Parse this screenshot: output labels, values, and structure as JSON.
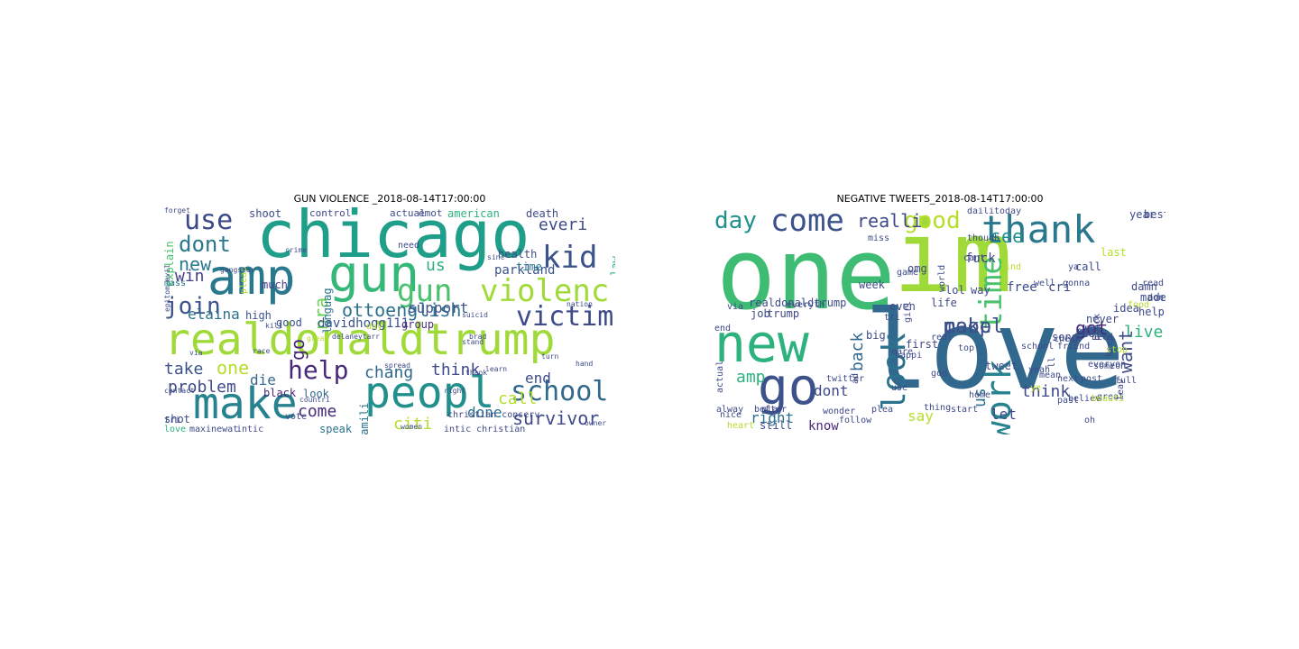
{
  "clouds": [
    {
      "title": "GUN VIOLENCE _2018-08-14T17:00:00",
      "words": [
        {
          "text": "chicago",
          "color": "#1f9e89"
        },
        {
          "text": "realdonaldtrump",
          "color": "#a0da39"
        },
        {
          "text": "amp",
          "color": "#2a788e"
        },
        {
          "text": "peopl",
          "color": "#21908d"
        },
        {
          "text": "make",
          "color": "#26828e"
        },
        {
          "text": "gun",
          "color": "#35b779"
        },
        {
          "text": "gun",
          "color": "#4ac16d"
        },
        {
          "text": "violenc",
          "color": "#a0da39"
        },
        {
          "text": "victim",
          "color": "#3e4a89"
        },
        {
          "text": "school",
          "color": "#31688e"
        },
        {
          "text": "kid",
          "color": "#3b528b"
        },
        {
          "text": "use",
          "color": "#3e4989"
        },
        {
          "text": "dont",
          "color": "#2a788e"
        },
        {
          "text": "join",
          "color": "#3b528b"
        },
        {
          "text": "help",
          "color": "#482878"
        },
        {
          "text": "ottoenglish",
          "color": "#2c728e"
        },
        {
          "text": "survivor",
          "color": "#3e4a89"
        },
        {
          "text": "new",
          "color": "#2a788e"
        },
        {
          "text": "win",
          "color": "#433e85"
        },
        {
          "text": "elaina",
          "color": "#2c728e"
        },
        {
          "text": "support",
          "color": "#3b528b"
        },
        {
          "text": "everi",
          "color": "#3e4a89"
        },
        {
          "text": "us",
          "color": "#2db27d"
        },
        {
          "text": "go",
          "color": "#482677"
        },
        {
          "text": "nra",
          "color": "#6ece58"
        },
        {
          "text": "problem",
          "color": "#3e4a89"
        },
        {
          "text": "take",
          "color": "#3b528b"
        },
        {
          "text": "one",
          "color": "#b5de2b"
        },
        {
          "text": "chang",
          "color": "#31688e"
        },
        {
          "text": "think",
          "color": "#3e4a89"
        },
        {
          "text": "die",
          "color": "#31688e"
        },
        {
          "text": "citi",
          "color": "#b5de2b"
        },
        {
          "text": "come",
          "color": "#472d7b"
        },
        {
          "text": "done",
          "color": "#2c728e"
        },
        {
          "text": "call",
          "color": "#b5de2b"
        },
        {
          "text": "end",
          "color": "#3e4a89"
        },
        {
          "text": "davidhogg111",
          "color": "#3b528b"
        },
        {
          "text": "parkland",
          "color": "#3b528b"
        },
        {
          "text": "time",
          "color": "#2a788e"
        },
        {
          "text": "shoot",
          "color": "#3e4a89"
        },
        {
          "text": "control",
          "color": "#3e4a89"
        },
        {
          "text": "american",
          "color": "#2db27d"
        },
        {
          "text": "death",
          "color": "#3e4a89"
        },
        {
          "text": "emot",
          "color": "#3e4a89"
        },
        {
          "text": "actual",
          "color": "#3e4a89"
        },
        {
          "text": "much",
          "color": "#433e85"
        },
        {
          "text": "need",
          "color": "#3e4a89"
        },
        {
          "text": "high",
          "color": "#3b528b"
        },
        {
          "text": "languag",
          "color": "#2c728e"
        },
        {
          "text": "good",
          "color": "#3b528b"
        },
        {
          "text": "group",
          "color": "#472d7b"
        },
        {
          "text": "black",
          "color": "#482878"
        },
        {
          "text": "look",
          "color": "#31688e"
        },
        {
          "text": "speak",
          "color": "#2c728e"
        },
        {
          "text": "famili",
          "color": "#2c728e"
        },
        {
          "text": "shot",
          "color": "#3e4a89"
        },
        {
          "text": "love",
          "color": "#2db27d"
        },
        {
          "text": "maxinewat",
          "color": "#3e4a89"
        },
        {
          "text": "intic",
          "color": "#3e4a89"
        },
        {
          "text": "explain",
          "color": "#4ac16d"
        },
        {
          "text": "health",
          "color": "#3e4a89"
        },
        {
          "text": "law",
          "color": "#2db27d"
        },
        {
          "text": "tri",
          "color": "#3e4a89"
        },
        {
          "text": "pleas",
          "color": "#b5de2b"
        },
        {
          "text": "vote",
          "color": "#3e4a89"
        },
        {
          "text": "christian conserv",
          "color": "#3e4a89"
        },
        {
          "text": "intic christian",
          "color": "#3e4a89"
        },
        {
          "text": "mass",
          "color": "#2c728e"
        },
        {
          "text": "day",
          "color": "#b5de2b"
        },
        {
          "text": "crime",
          "color": "#3e4a89"
        },
        {
          "text": "great",
          "color": "#b5de2b"
        },
        {
          "text": "kill",
          "color": "#3e4a89"
        },
        {
          "text": "forget",
          "color": "#3e4a89"
        },
        {
          "text": "stand",
          "color": "#3e4a89"
        },
        {
          "text": "right",
          "color": "#3e4a89"
        },
        {
          "text": "better",
          "color": "#3e4a89"
        },
        {
          "text": "sinc",
          "color": "#3e4a89"
        },
        {
          "text": "epitom evil",
          "color": "#3e4a89"
        },
        {
          "text": "women",
          "color": "#3e4a89"
        },
        {
          "text": "suicid",
          "color": "#3e4a89"
        },
        {
          "text": "countri",
          "color": "#3e4a89"
        },
        {
          "text": "nation",
          "color": "#3e4a89"
        },
        {
          "text": "delaneytarr",
          "color": "#3e4a89"
        },
        {
          "text": "bring",
          "color": "#3e4a89"
        },
        {
          "text": "believ",
          "color": "#3e4a89"
        },
        {
          "text": "spread",
          "color": "#3e4a89"
        },
        {
          "text": "brad",
          "color": "#3e4a89"
        },
        {
          "text": "learn",
          "color": "#3e4a89"
        },
        {
          "text": "thank",
          "color": "#3e4a89"
        },
        {
          "text": "gangster",
          "color": "#3e4a89"
        },
        {
          "text": "contact",
          "color": "#3e4a89"
        },
        {
          "text": "hand",
          "color": "#3e4a89"
        },
        {
          "text": "turn",
          "color": "#3e4a89"
        },
        {
          "text": "realiti",
          "color": "#3e4a89"
        },
        {
          "text": "via",
          "color": "#3e4a89"
        },
        {
          "text": "owner",
          "color": "#3e4a89"
        },
        {
          "text": "race",
          "color": "#3e4a89"
        },
        {
          "text": "plan",
          "color": "#3e4a89"
        },
        {
          "text": "state",
          "color": "#3e4a89"
        }
      ]
    },
    {
      "title": "NEGATIVE TWEETS_2018-08-14T17:00:00",
      "words": [
        {
          "text": "one",
          "color": "#3fbc73"
        },
        {
          "text": "im",
          "color": "#a0da39"
        },
        {
          "text": "love",
          "color": "#31688e"
        },
        {
          "text": "new",
          "color": "#2db27d"
        },
        {
          "text": "go",
          "color": "#3b528b"
        },
        {
          "text": "thank",
          "color": "#2a788e"
        },
        {
          "text": "look",
          "color": "#2c728e"
        },
        {
          "text": "work",
          "color": "#26828e"
        },
        {
          "text": "time",
          "color": "#4ac16d"
        },
        {
          "text": "come",
          "color": "#3b528b"
        },
        {
          "text": "day",
          "color": "#21908d"
        },
        {
          "text": "good",
          "color": "#b5de2b"
        },
        {
          "text": "realli",
          "color": "#3e4a89"
        },
        {
          "text": "make",
          "color": "#3e4a89"
        },
        {
          "text": "peopl",
          "color": "#3b528b"
        },
        {
          "text": "see",
          "color": "#21908d"
        },
        {
          "text": "got",
          "color": "#482878"
        },
        {
          "text": "live",
          "color": "#2db27d"
        },
        {
          "text": "want",
          "color": "#3e4a89"
        },
        {
          "text": "back",
          "color": "#31688e"
        },
        {
          "text": "us",
          "color": "#2c728e"
        },
        {
          "text": "think",
          "color": "#3e4a89"
        },
        {
          "text": "let",
          "color": "#3e4a89"
        },
        {
          "text": "say",
          "color": "#b5de2b"
        },
        {
          "text": "amp",
          "color": "#2db27d"
        },
        {
          "text": "right",
          "color": "#2c728e"
        },
        {
          "text": "know",
          "color": "#482878"
        },
        {
          "text": "dont",
          "color": "#3e4a89"
        },
        {
          "text": "tweet",
          "color": "#3e4a89"
        },
        {
          "text": "last",
          "color": "#b5de2b"
        },
        {
          "text": "best",
          "color": "#3e4a89"
        },
        {
          "text": "year",
          "color": "#3e4a89"
        },
        {
          "text": "call",
          "color": "#3e4a89"
        },
        {
          "text": "made",
          "color": "#3e4a89"
        },
        {
          "text": "realdonaldtrump",
          "color": "#3e4a89"
        },
        {
          "text": "trump",
          "color": "#3e4a89"
        },
        {
          "text": "still",
          "color": "#3e4a89"
        },
        {
          "text": "daili",
          "color": "#3e4a89"
        },
        {
          "text": "today",
          "color": "#3e4a89"
        },
        {
          "text": "fuck",
          "color": "#3e4a89"
        },
        {
          "text": "free",
          "color": "#3e4a89"
        },
        {
          "text": "cri",
          "color": "#3e4a89"
        },
        {
          "text": "never",
          "color": "#3e4a89"
        },
        {
          "text": "idea",
          "color": "#3e4a89"
        },
        {
          "text": "block",
          "color": "#3e4a89"
        },
        {
          "text": "keep",
          "color": "#3e4a89"
        },
        {
          "text": "stop",
          "color": "#b5de2b"
        },
        {
          "text": "help",
          "color": "#3e4a89"
        },
        {
          "text": "food",
          "color": "#b5de2b"
        },
        {
          "text": "feel",
          "color": "#3e4a89"
        },
        {
          "text": "school",
          "color": "#3e4a89"
        },
        {
          "text": "put",
          "color": "#3e4a89"
        },
        {
          "text": "song",
          "color": "#3e4a89"
        },
        {
          "text": "damn",
          "color": "#3e4a89"
        },
        {
          "text": "life",
          "color": "#3e4a89"
        },
        {
          "text": "week",
          "color": "#3e4a89"
        },
        {
          "text": "even",
          "color": "#3e4a89"
        },
        {
          "text": "job",
          "color": "#3e4a89"
        },
        {
          "text": "omg",
          "color": "#3e4a89"
        },
        {
          "text": "lol",
          "color": "#3e4a89"
        },
        {
          "text": "way",
          "color": "#3e4a89"
        },
        {
          "text": "big",
          "color": "#3e4a89"
        },
        {
          "text": "care",
          "color": "#3e4a89"
        },
        {
          "text": "first",
          "color": "#3e4a89"
        },
        {
          "text": "friend",
          "color": "#3e4a89"
        },
        {
          "text": "happi",
          "color": "#3e4a89"
        },
        {
          "text": "yeah",
          "color": "#3e4a89"
        },
        {
          "text": "mean",
          "color": "#3e4a89"
        },
        {
          "text": "next",
          "color": "#3e4a89"
        },
        {
          "text": "post",
          "color": "#3e4a89"
        },
        {
          "text": "someon",
          "color": "#3e4a89"
        },
        {
          "text": "full",
          "color": "#3e4a89"
        },
        {
          "text": "everyon",
          "color": "#3e4a89"
        },
        {
          "text": "great",
          "color": "#3e4a89"
        },
        {
          "text": "leav",
          "color": "#3e4a89"
        },
        {
          "text": "believ",
          "color": "#3e4a89"
        },
        {
          "text": "beauti",
          "color": "#b5de2b"
        },
        {
          "text": "start",
          "color": "#3e4a89"
        },
        {
          "text": "thing",
          "color": "#3e4a89"
        },
        {
          "text": "home",
          "color": "#3e4a89"
        },
        {
          "text": "god",
          "color": "#3e4a89"
        },
        {
          "text": "use",
          "color": "#3e4a89"
        },
        {
          "text": "twitter",
          "color": "#3e4a89"
        },
        {
          "text": "better",
          "color": "#3e4a89"
        },
        {
          "text": "alway",
          "color": "#3e4a89"
        },
        {
          "text": "heart",
          "color": "#b5de2b"
        },
        {
          "text": "follow",
          "color": "#3e4a89"
        },
        {
          "text": "plea",
          "color": "#3e4a89"
        },
        {
          "text": "via",
          "color": "#3e4a89"
        },
        {
          "text": "play",
          "color": "#3e4a89"
        },
        {
          "text": "end",
          "color": "#3e4a89"
        },
        {
          "text": "actual",
          "color": "#3e4a89"
        },
        {
          "text": "nice",
          "color": "#3e4a89"
        },
        {
          "text": "match",
          "color": "#3e4a89"
        },
        {
          "text": "wonder",
          "color": "#3e4a89"
        },
        {
          "text": "ye",
          "color": "#b5de2b"
        },
        {
          "text": "girl",
          "color": "#3e4a89"
        },
        {
          "text": "cant",
          "color": "#3e4a89"
        },
        {
          "text": "well",
          "color": "#3e4a89"
        },
        {
          "text": "gonna",
          "color": "#3e4a89"
        },
        {
          "text": "read",
          "color": "#3e4a89"
        },
        {
          "text": "don",
          "color": "#3e4a89"
        },
        {
          "text": "need",
          "color": "#3e4a89"
        },
        {
          "text": "oh",
          "color": "#3e4a89"
        },
        {
          "text": "ya",
          "color": "#3e4a89"
        },
        {
          "text": "check",
          "color": "#3e4a89"
        },
        {
          "text": "tri",
          "color": "#3e4a89"
        },
        {
          "text": "miss",
          "color": "#3e4a89"
        },
        {
          "text": "though",
          "color": "#3e4a89"
        },
        {
          "text": "real",
          "color": "#3e4a89"
        },
        {
          "text": "world",
          "color": "#3e4a89"
        },
        {
          "text": "game",
          "color": "#3e4a89"
        },
        {
          "text": "ad",
          "color": "#3e4a89"
        },
        {
          "text": "everyth",
          "color": "#3e4a89"
        },
        {
          "text": "ll",
          "color": "#3e4a89"
        },
        {
          "text": "find",
          "color": "#b5de2b"
        },
        {
          "text": "top",
          "color": "#3e4a89"
        },
        {
          "text": "past",
          "color": "#3e4a89"
        },
        {
          "text": "creat",
          "color": "#3e4a89"
        }
      ]
    }
  ]
}
